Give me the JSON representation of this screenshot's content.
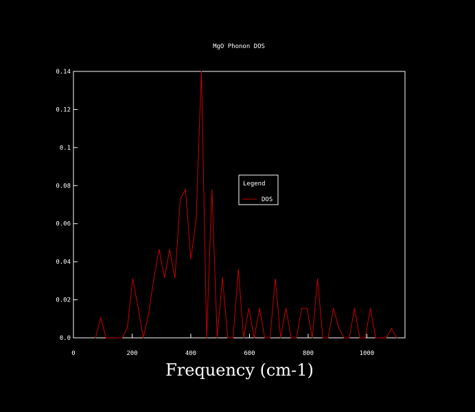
{
  "chart_data": {
    "type": "line",
    "title": "MgO Phonon DOS",
    "xlabel": "Frequency (cm-1)",
    "ylabel": "",
    "xlim": [
      0,
      1130
    ],
    "ylim": [
      0,
      0.14
    ],
    "xticks": [
      0,
      200,
      400,
      600,
      800,
      1000
    ],
    "xtick_labels": [
      "0",
      "200",
      "400",
      "600",
      "800",
      "1000"
    ],
    "yticks": [
      0,
      0.02,
      0.04,
      0.06,
      0.08,
      0.1,
      0.12,
      0.14
    ],
    "ytick_labels": [
      "0.0",
      "0.02",
      "0.04",
      "0.06",
      "0.08",
      "0.1",
      "0.12",
      "0.14"
    ],
    "grid": false,
    "legend": {
      "title": "Legend",
      "position": "center-right"
    },
    "series": [
      {
        "name": "DOS",
        "color": "#cc0000",
        "x": [
          75,
          93,
          111,
          166,
          184,
          202,
          220,
          238,
          256,
          274,
          292,
          310,
          328,
          346,
          364,
          382,
          400,
          418,
          436,
          454,
          472,
          490,
          508,
          526,
          544,
          562,
          580,
          598,
          616,
          634,
          652,
          670,
          688,
          706,
          724,
          742,
          760,
          778,
          796,
          814,
          832,
          850,
          868,
          886,
          904,
          922,
          940,
          958,
          976,
          994,
          1012,
          1030,
          1048,
          1066,
          1084,
          1102
        ],
        "y": [
          0,
          0.0105,
          0,
          0,
          0.0055,
          0.031,
          0.0165,
          0,
          0.0125,
          0.031,
          0.0465,
          0.0315,
          0.0465,
          0.0315,
          0.073,
          0.078,
          0.0415,
          0.062,
          0.14,
          0,
          0.078,
          0,
          0.0315,
          0,
          0,
          0.036,
          0,
          0.0155,
          0,
          0.0155,
          0,
          0,
          0.031,
          0,
          0.0155,
          0,
          0,
          0.0155,
          0.0155,
          0,
          0.031,
          0,
          0,
          0.0155,
          0.0055,
          0,
          0,
          0.0155,
          0,
          0,
          0.0155,
          0,
          0,
          0,
          0.005,
          0
        ]
      }
    ]
  }
}
